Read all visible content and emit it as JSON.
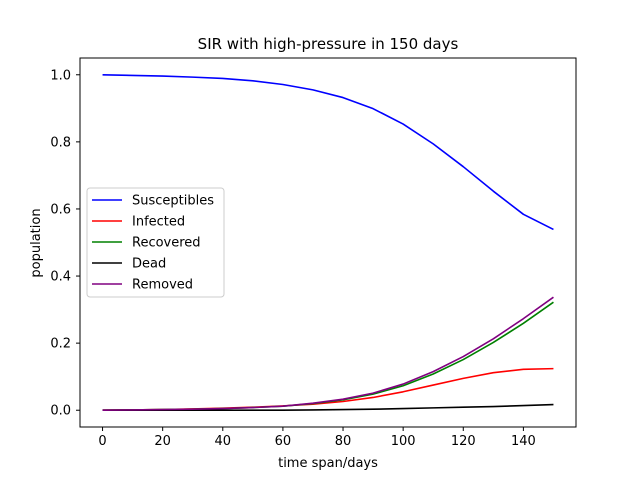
{
  "chart_data": {
    "type": "line",
    "title": "SIR with high-pressure in 150 days",
    "xlabel": "time span/days",
    "ylabel": "population",
    "xlim": [
      -7.5,
      157.5
    ],
    "ylim": [
      -0.05,
      1.05
    ],
    "xticks": [
      0,
      20,
      40,
      60,
      80,
      100,
      120,
      140
    ],
    "yticks": [
      0.0,
      0.2,
      0.4,
      0.6,
      0.8,
      1.0
    ],
    "xtick_labels": [
      "0",
      "20",
      "40",
      "60",
      "80",
      "100",
      "120",
      "140"
    ],
    "ytick_labels": [
      "0.0",
      "0.2",
      "0.4",
      "0.6",
      "0.8",
      "1.0"
    ],
    "grid": false,
    "legend_position": "center-left",
    "x": [
      0,
      10,
      20,
      30,
      40,
      50,
      60,
      70,
      80,
      90,
      100,
      110,
      120,
      130,
      140,
      150
    ],
    "series": [
      {
        "name": "Susceptibles",
        "color": "#0000ff",
        "values": [
          1.0,
          0.998,
          0.996,
          0.993,
          0.989,
          0.982,
          0.971,
          0.955,
          0.932,
          0.899,
          0.853,
          0.794,
          0.726,
          0.653,
          0.584,
          0.539
        ]
      },
      {
        "name": "Infected",
        "color": "#ff0000",
        "values": [
          0.0,
          0.001,
          0.002,
          0.004,
          0.006,
          0.009,
          0.013,
          0.018,
          0.026,
          0.038,
          0.055,
          0.075,
          0.095,
          0.112,
          0.122,
          0.124
        ]
      },
      {
        "name": "Recovered",
        "color": "#008000",
        "values": [
          0.0,
          0.001,
          0.002,
          0.003,
          0.005,
          0.008,
          0.012,
          0.02,
          0.031,
          0.048,
          0.073,
          0.108,
          0.151,
          0.202,
          0.259,
          0.322
        ]
      },
      {
        "name": "Dead",
        "color": "#000000",
        "values": [
          0.0,
          0.0,
          0.0,
          0.0,
          0.0,
          0.0,
          0.0,
          0.001,
          0.002,
          0.003,
          0.005,
          0.007,
          0.009,
          0.011,
          0.014,
          0.017
        ]
      },
      {
        "name": "Removed",
        "color": "#800080",
        "values": [
          0.0,
          0.001,
          0.002,
          0.003,
          0.005,
          0.008,
          0.012,
          0.021,
          0.033,
          0.051,
          0.078,
          0.115,
          0.16,
          0.213,
          0.273,
          0.337
        ]
      }
    ]
  }
}
